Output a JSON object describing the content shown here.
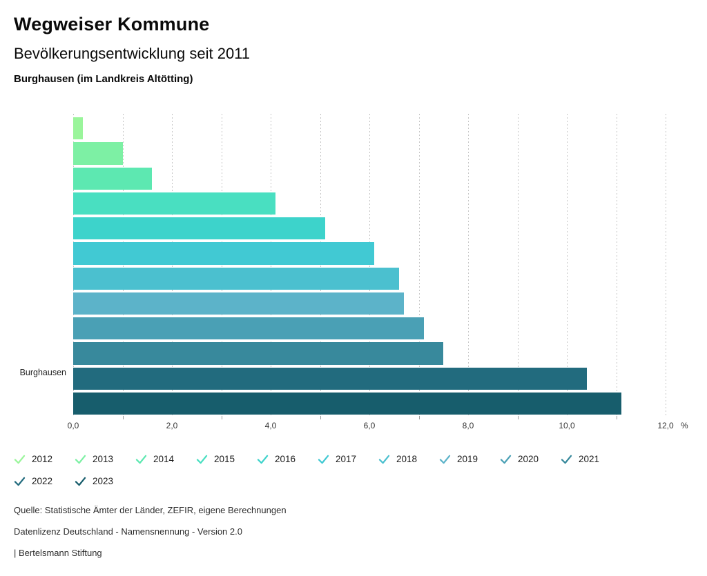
{
  "header": {
    "app_title": "Wegweiser Kommune",
    "chart_title": "Bevölkerungsentwicklung seit 2011",
    "location_subtitle": "Burghausen (im Landkreis Altötting)"
  },
  "chart_data": {
    "type": "bar",
    "orientation": "horizontal",
    "group_label": "Burghausen",
    "categories": [
      "2012",
      "2013",
      "2014",
      "2015",
      "2016",
      "2017",
      "2018",
      "2019",
      "2020",
      "2021",
      "2022",
      "2023"
    ],
    "values": [
      0.2,
      1.0,
      1.6,
      4.1,
      5.1,
      6.1,
      6.6,
      6.7,
      7.1,
      7.5,
      10.4,
      11.1
    ],
    "unit": "%",
    "colors": [
      "#9af59b",
      "#7df0a4",
      "#5de8b1",
      "#49dfc1",
      "#3dd3cb",
      "#41c9d3",
      "#4bc0cf",
      "#5cb3c9",
      "#4aa0b5",
      "#38899c",
      "#226b7e",
      "#175d6c"
    ],
    "xlim": [
      0,
      12
    ],
    "x_major_ticks": [
      {
        "value": 0,
        "label": "0,0"
      },
      {
        "value": 2,
        "label": "2,0"
      },
      {
        "value": 4,
        "label": "4,0"
      },
      {
        "value": 6,
        "label": "6,0"
      },
      {
        "value": 8,
        "label": "8,0"
      },
      {
        "value": 10,
        "label": "10,0"
      },
      {
        "value": 12,
        "label": "12,0"
      }
    ],
    "x_minor_ticks": [
      1,
      3,
      5,
      7,
      9,
      11
    ],
    "grid": {
      "vertical_line_every": 1,
      "style": "dashed"
    },
    "legend_position": "bottom",
    "legend_icon": "check-icon"
  },
  "footer": {
    "source": "Quelle: Statistische Ämter der Länder, ZEFIR, eigene Berechnungen",
    "license": "Datenlizenz Deutschland - Namensnennung - Version 2.0",
    "attribution": "| Bertelsmann Stiftung"
  }
}
